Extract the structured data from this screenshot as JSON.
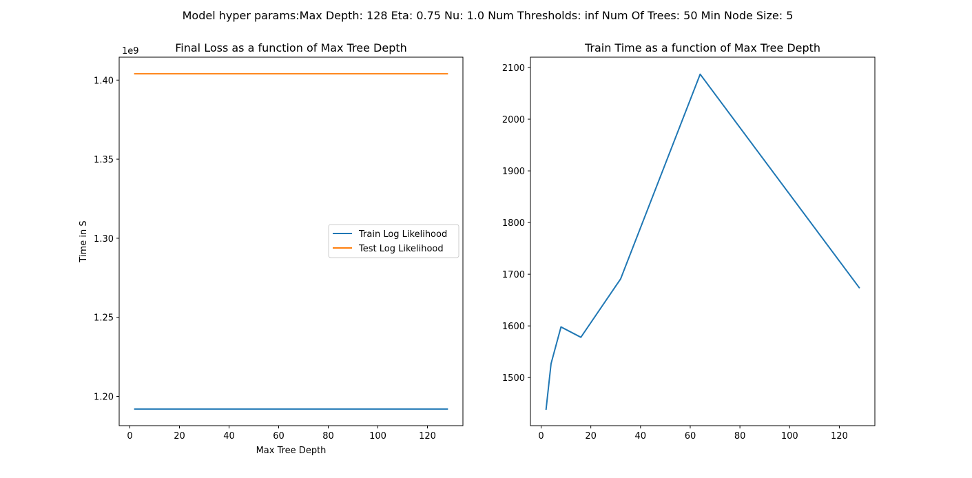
{
  "suptitle": "Model hyper params:Max Depth: 128 Eta: 0.75 Nu: 1.0 Num Thresholds: inf Num Of Trees: 50 Min Node Size: 5",
  "chart_data": [
    {
      "type": "line",
      "title": "Final Loss as a function of Max Tree Depth",
      "xlabel": "Max Tree Depth",
      "ylabel": "Time in S",
      "offset_label": "1e9",
      "xlim": [
        -4.3,
        134.3
      ],
      "ylim": [
        1.1815,
        1.4145
      ],
      "xticks": [
        0,
        20,
        40,
        60,
        80,
        100,
        120
      ],
      "xtick_labels": [
        "0",
        "20",
        "40",
        "60",
        "80",
        "100",
        "120"
      ],
      "yticks": [
        1.2,
        1.25,
        1.3,
        1.35,
        1.4
      ],
      "ytick_labels": [
        "1.20",
        "1.25",
        "1.30",
        "1.35",
        "1.40"
      ],
      "grid": false,
      "legend": {
        "position": "center-right",
        "entries": [
          "Train Log Likelihood",
          "Test Log Likelihood"
        ]
      },
      "series": [
        {
          "name": "Train Log Likelihood",
          "color": "#1f77b4",
          "x": [
            2,
            4,
            8,
            16,
            32,
            64,
            128
          ],
          "y": [
            1.192,
            1.192,
            1.192,
            1.192,
            1.192,
            1.192,
            1.192
          ]
        },
        {
          "name": "Test Log Likelihood",
          "color": "#ff7f0e",
          "x": [
            2,
            4,
            8,
            16,
            32,
            64,
            128
          ],
          "y": [
            1.404,
            1.404,
            1.404,
            1.404,
            1.404,
            1.404,
            1.404
          ]
        }
      ]
    },
    {
      "type": "line",
      "title": "Train Time as a function of Max Tree Depth",
      "xlabel": "",
      "ylabel": "",
      "xlim": [
        -4.3,
        134.3
      ],
      "ylim": [
        1407,
        2120
      ],
      "xticks": [
        0,
        20,
        40,
        60,
        80,
        100,
        120
      ],
      "xtick_labels": [
        "0",
        "20",
        "40",
        "60",
        "80",
        "100",
        "120"
      ],
      "yticks": [
        1500,
        1600,
        1700,
        1800,
        1900,
        2000,
        2100
      ],
      "ytick_labels": [
        "1500",
        "1600",
        "1700",
        "1800",
        "1900",
        "2000",
        "2100"
      ],
      "grid": false,
      "series": [
        {
          "color": "#1f77b4",
          "x": [
            2,
            4,
            8,
            16,
            32,
            64,
            128
          ],
          "y": [
            1439,
            1527,
            1598,
            1578,
            1691,
            2087,
            1674
          ]
        }
      ]
    }
  ]
}
